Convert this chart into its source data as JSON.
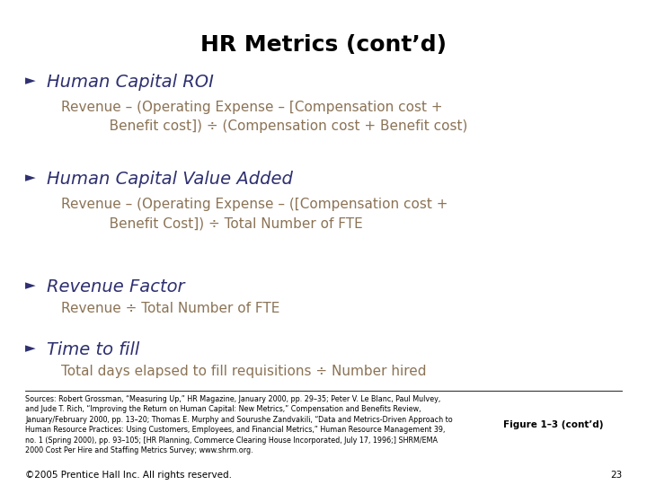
{
  "title": "HR Metrics (cont’d)",
  "title_color": "#000000",
  "title_fontsize": 18,
  "bullet_color": "#2E3070",
  "bullet_char_fontsize": 11,
  "heading_fontsize": 14,
  "body_color": "#8B7355",
  "body_fontsize": 11,
  "bg_color": "#FFFFFF",
  "bullets": [
    {
      "heading": "Human Capital ROI",
      "body": "Revenue – (Operating Expense – [Compensation cost +\n           Benefit cost]) ÷ (Compensation cost + Benefit cost)"
    },
    {
      "heading": "Human Capital Value Added",
      "body": "Revenue – (Operating Expense – ([Compensation cost +\n           Benefit Cost]) ÷ Total Number of FTE"
    },
    {
      "heading": "Revenue Factor",
      "body": "Revenue ÷ Total Number of FTE"
    },
    {
      "heading": "Time to fill",
      "body": "Total days elapsed to fill requisitions ÷ Number hired"
    }
  ],
  "sources_text": "Sources: Robert Grossman, “Measuring Up,” HR Magazine, January 2000, pp. 29–35; Peter V. Le Blanc, Paul Mulvey,\nand Jude T. Rich, “Improving the Return on Human Capital: New Metrics,” Compensation and Benefits Review,\nJanuary/February 2000, pp. 13–20; Thomas E. Murphy and Sourushe Zandvakili, “Data and Metrics-Driven Approach to\nHuman Resource Practices: Using Customers, Employees, and Financial Metrics,” Human Resource Management 39,\nno. 1 (Spring 2000), pp. 93–105; [HR Planning, Commerce Clearing House Incorporated, July 17, 1996;] SHRM/EMA\n2000 Cost Per Hire and Staffing Metrics Survey; www.shrm.org.",
  "figure_label": "Figure 1–3 (cont’d)",
  "copyright_text": "©2005 Prentice Hall Inc. All rights reserved.",
  "page_number": "23",
  "sources_fontsize": 5.8,
  "footer_fontsize": 7.5
}
